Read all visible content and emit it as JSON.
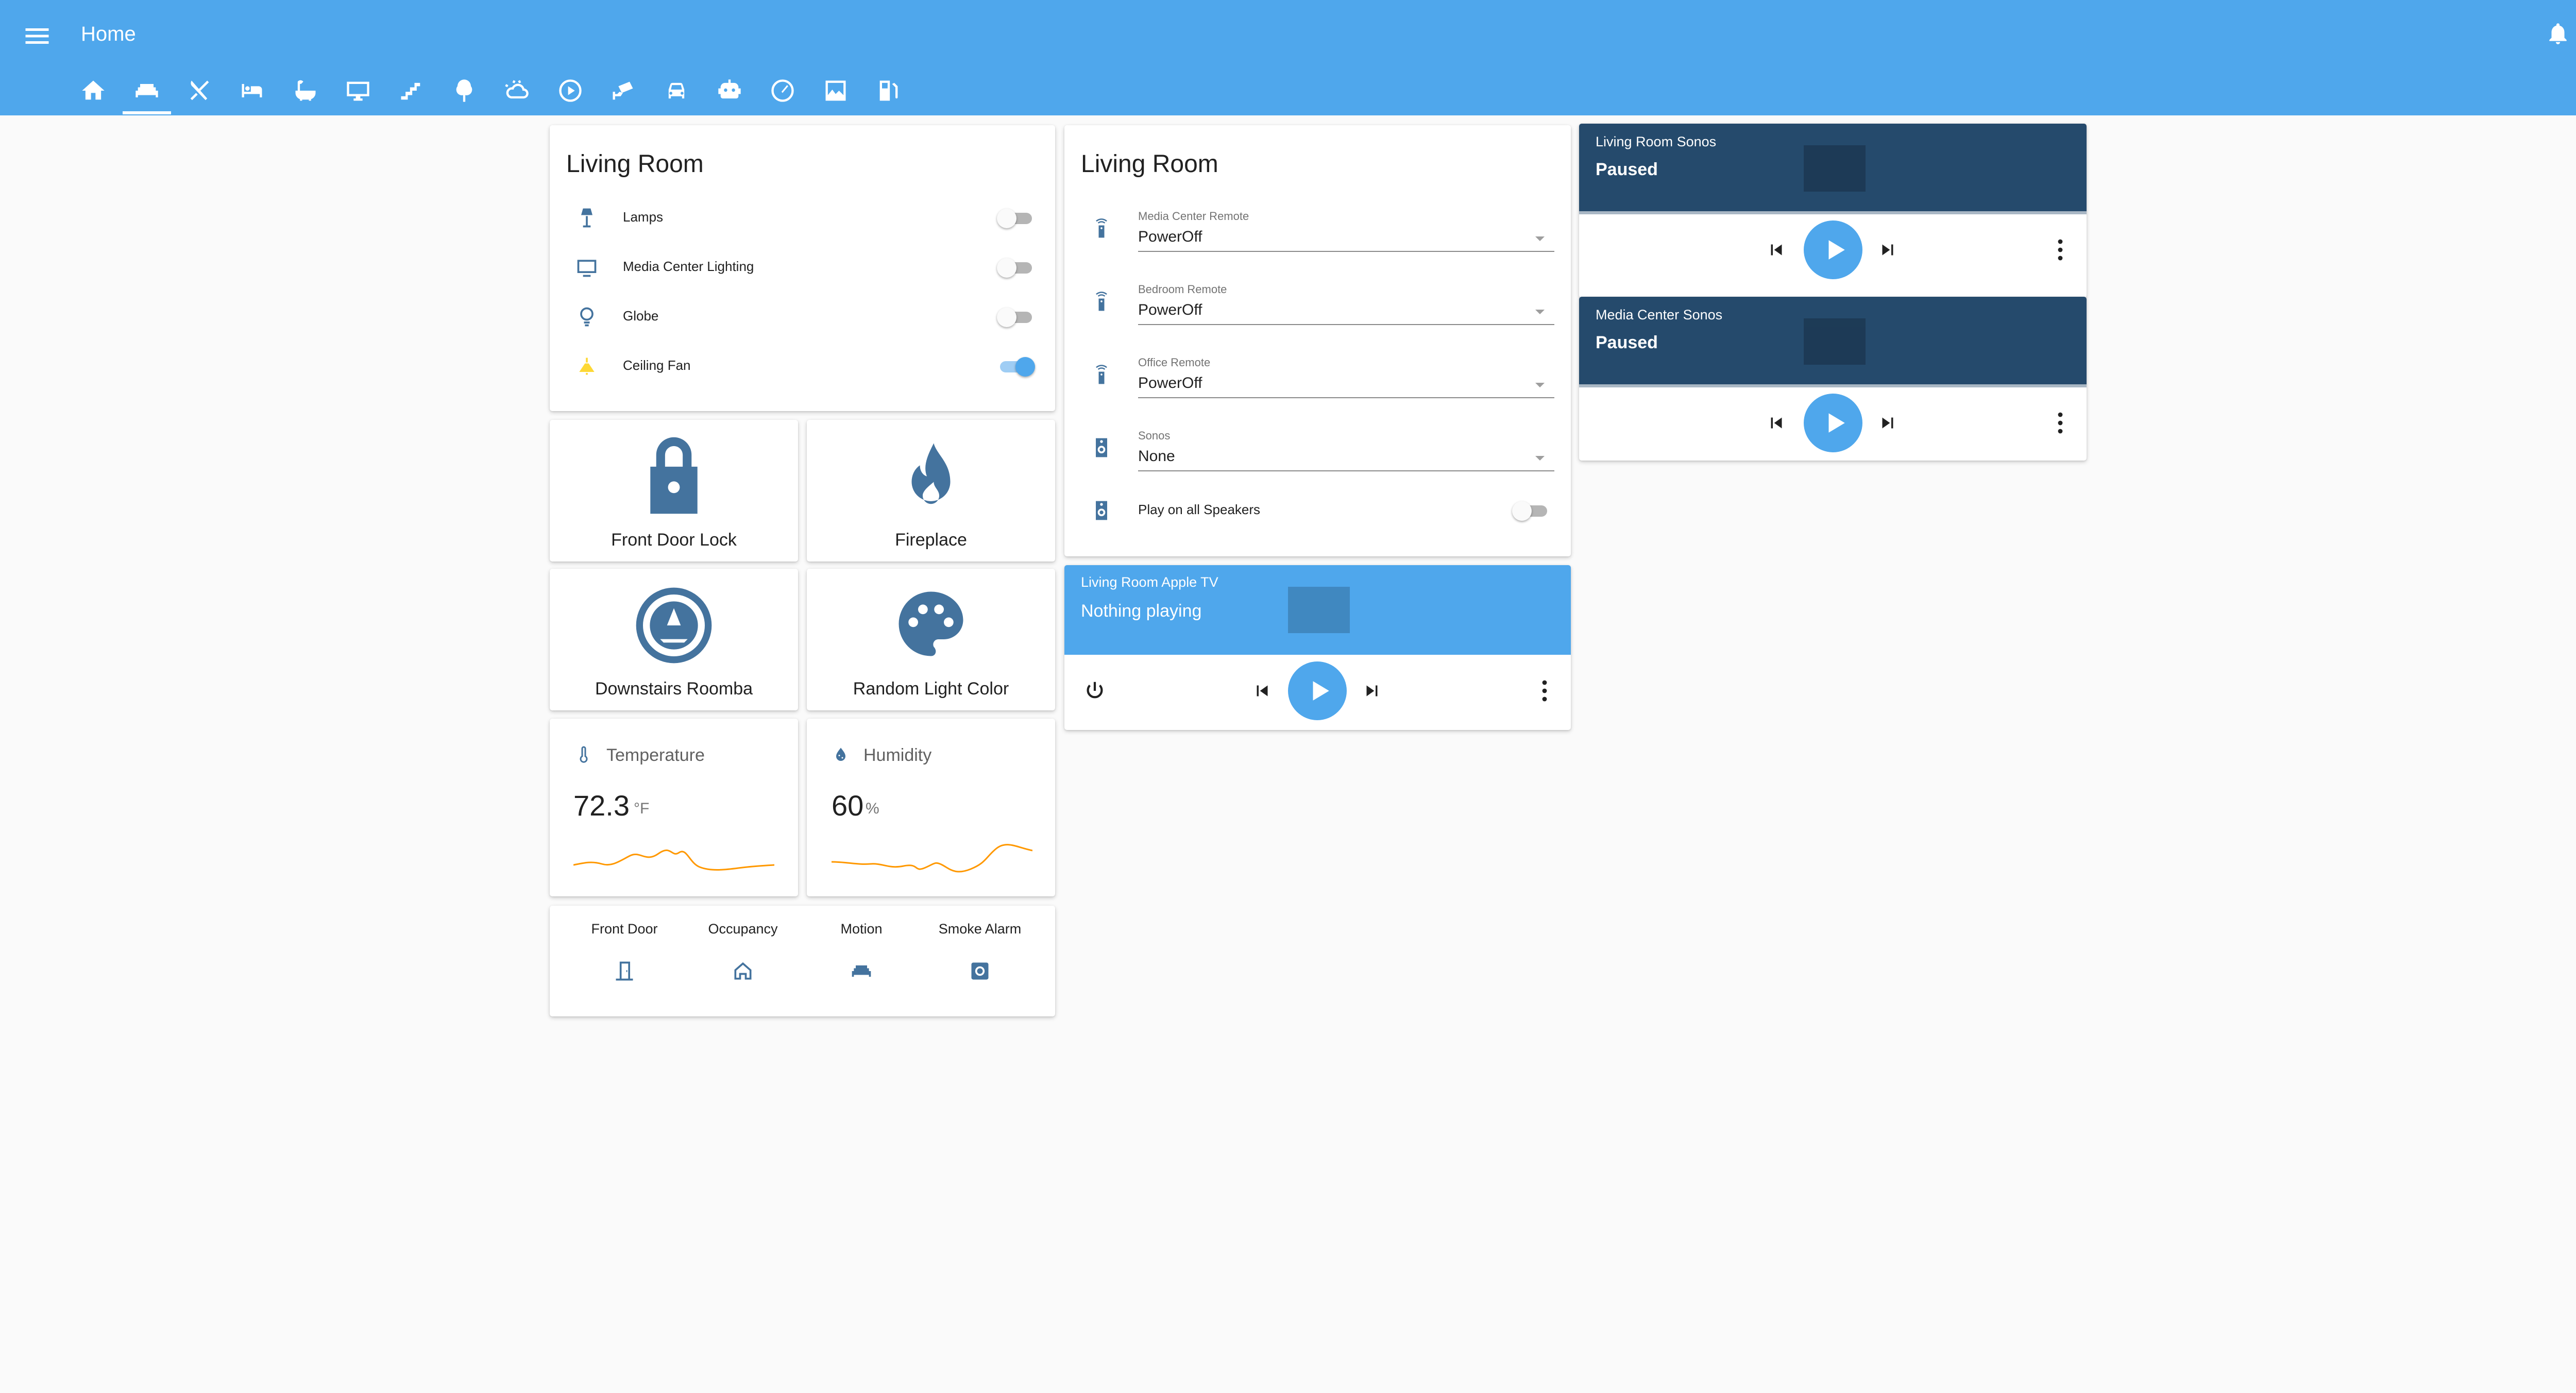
{
  "header": {
    "title": "Home",
    "tabs": [
      {
        "icon": "home-icon"
      },
      {
        "icon": "sofa-icon",
        "active": true
      },
      {
        "icon": "silverware-icon"
      },
      {
        "icon": "bed-icon"
      },
      {
        "icon": "bathtub-icon"
      },
      {
        "icon": "monitor-icon"
      },
      {
        "icon": "stairs-icon"
      },
      {
        "icon": "tree-icon"
      },
      {
        "icon": "weather-icon"
      },
      {
        "icon": "play-circle-icon"
      },
      {
        "icon": "cctv-icon"
      },
      {
        "icon": "car-icon"
      },
      {
        "icon": "robot-icon"
      },
      {
        "icon": "gauge-icon"
      },
      {
        "icon": "photo-icon"
      },
      {
        "icon": "gas-station-icon"
      }
    ]
  },
  "colors": {
    "header": "#4fa7ec",
    "accent": "#4fa7ec",
    "icon": "#44739e",
    "media_dark": "#254a6c",
    "chart_line": "#ff9800",
    "fan_active": "#fdd835"
  },
  "lights_card": {
    "title": "Living Room",
    "rows": [
      {
        "label": "Lamps",
        "icon": "floor-lamp-icon",
        "on": false
      },
      {
        "label": "Media Center Lighting",
        "icon": "television-icon",
        "on": false
      },
      {
        "label": "Globe",
        "icon": "globe-light-icon",
        "on": false
      },
      {
        "label": "Ceiling Fan",
        "icon": "ceiling-fan-icon",
        "on": true
      }
    ]
  },
  "entity_buttons": [
    {
      "name": "Front Door Lock",
      "icon": "lock-icon"
    },
    {
      "name": "Fireplace",
      "icon": "fire-icon"
    },
    {
      "name": "Downstairs Roomba",
      "icon": "robot-vacuum-icon"
    },
    {
      "name": "Random Light Color",
      "icon": "palette-icon"
    }
  ],
  "sensors": [
    {
      "name": "Temperature",
      "value": "72.3",
      "unit": "°F",
      "icon": "thermometer-icon"
    },
    {
      "name": "Humidity",
      "value": "60",
      "unit": "%",
      "icon": "water-percent-icon"
    }
  ],
  "glance": [
    {
      "name": "Front Door",
      "icon": "door-icon"
    },
    {
      "name": "Occupancy",
      "icon": "home-outline-icon"
    },
    {
      "name": "Motion",
      "icon": "sofa-icon"
    },
    {
      "name": "Smoke Alarm",
      "icon": "smoke-detector-icon"
    }
  ],
  "remote_card": {
    "title": "Living Room",
    "selects": [
      {
        "label": "Media Center Remote",
        "value": "PowerOff",
        "icon": "remote-icon"
      },
      {
        "label": "Bedroom Remote",
        "value": "PowerOff",
        "icon": "remote-icon"
      },
      {
        "label": "Office Remote",
        "value": "PowerOff",
        "icon": "remote-icon"
      },
      {
        "label": "Sonos",
        "value": "None",
        "icon": "speaker-icon"
      }
    ],
    "toggle": {
      "label": "Play on all Speakers",
      "icon": "speaker-icon",
      "on": false
    }
  },
  "media_players": [
    {
      "name": "Living Room Apple TV",
      "state": "Nothing playing",
      "theme": "light",
      "power_button": true
    },
    {
      "name": "Living Room Sonos",
      "state": "Paused",
      "theme": "dark"
    },
    {
      "name": "Media Center Sonos",
      "state": "Paused",
      "theme": "dark"
    }
  ]
}
